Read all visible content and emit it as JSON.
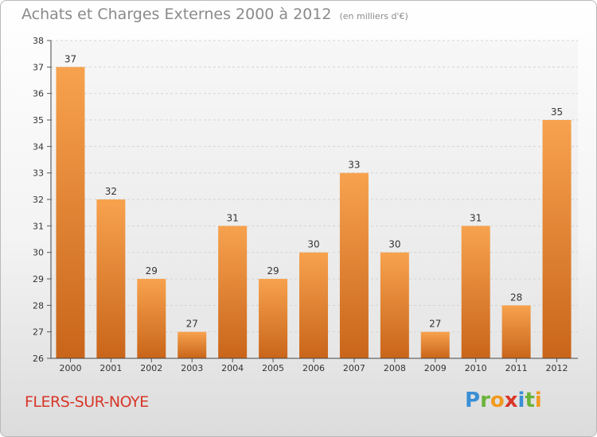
{
  "title": "Achats et Charges Externes 2000 à 2012",
  "unit": "(en milliers d'€)",
  "city": "FLERS-SUR-NOYE",
  "brand": {
    "letters": [
      "P",
      "r",
      "o",
      "x",
      "i",
      "t",
      "i"
    ],
    "colors": [
      "#3a8fd6",
      "#6bb33a",
      "#f29a1f",
      "#d8372a",
      "#3a8fd6",
      "#6bb33a",
      "#f29a1f"
    ]
  },
  "chart_data": {
    "type": "bar",
    "categories": [
      "2000",
      "2001",
      "2002",
      "2003",
      "2004",
      "2005",
      "2006",
      "2007",
      "2008",
      "2009",
      "2010",
      "2011",
      "2012"
    ],
    "values": [
      37,
      32,
      29,
      27,
      31,
      29,
      30,
      33,
      30,
      27,
      31,
      28,
      35
    ],
    "ylim": [
      26,
      38
    ],
    "yticks": [
      26,
      27,
      28,
      29,
      30,
      31,
      32,
      33,
      34,
      35,
      36,
      37,
      38
    ],
    "bar_color_top": "#f7a24e",
    "bar_color_bottom": "#c9651a"
  }
}
